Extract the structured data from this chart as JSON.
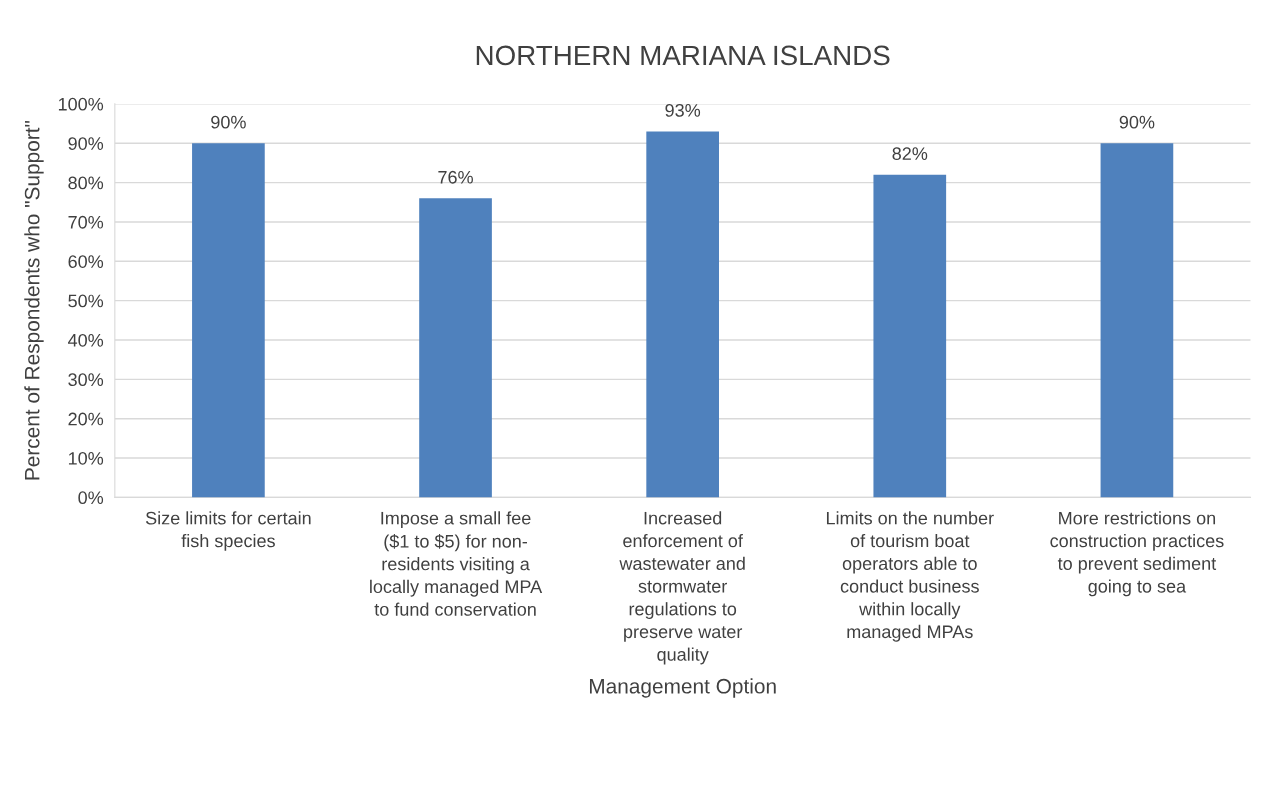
{
  "chart_data": {
    "type": "bar",
    "title": "NORTHERN MARIANA ISLANDS",
    "xlabel": "Management Option",
    "ylabel": "Percent of Respondents who \"Support\"",
    "categories": [
      "Size limits for certain\nfish species",
      "Impose a small fee\n($1 to $5) for non-\nresidents visiting a\nlocally managed MPA\nto fund conservation",
      "Increased\nenforcement of\nwastewater and\nstormwater\nregulations to\npreserve water\nquality",
      "Limits on the number\nof tourism boat\noperators able to\nconduct business\nwithin locally\nmanaged MPAs",
      "More restrictions on\nconstruction practices\nto prevent sediment\ngoing to sea"
    ],
    "values": [
      90,
      76,
      93,
      82,
      90
    ],
    "value_labels": [
      "90%",
      "76%",
      "93%",
      "82%",
      "90%"
    ],
    "color": "#4f81bd",
    "ylim": [
      0,
      100
    ],
    "yticks": [
      {
        "value": 0,
        "label": "0%"
      },
      {
        "value": 10,
        "label": "10%"
      },
      {
        "value": 20,
        "label": "20%"
      },
      {
        "value": 30,
        "label": "30%"
      },
      {
        "value": 40,
        "label": "40%"
      },
      {
        "value": 50,
        "label": "50%"
      },
      {
        "value": 60,
        "label": "60%"
      },
      {
        "value": 70,
        "label": "70%"
      },
      {
        "value": 80,
        "label": "80%"
      },
      {
        "value": 90,
        "label": "90%"
      },
      {
        "value": 100,
        "label": "100%"
      }
    ],
    "grid": "y"
  }
}
